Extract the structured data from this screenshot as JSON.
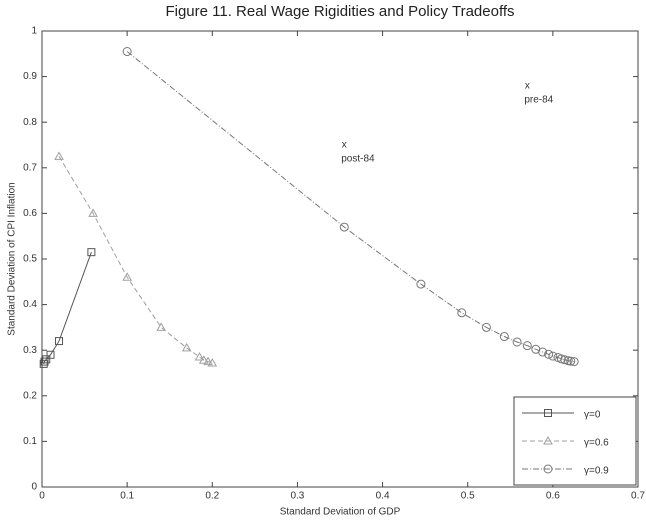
{
  "chart_data": {
    "type": "line",
    "title": "Figure 11. Real Wage Rigidities and Policy Tradeoffs",
    "x_label": "Standard Deviation of GDP",
    "y_label": "Standard Deviation of CPI Inflation",
    "xlim": [
      0,
      0.7
    ],
    "xticks": [
      0,
      0.1,
      0.2,
      0.3,
      0.4,
      0.5,
      0.6,
      0.7
    ],
    "ylim": [
      0,
      1
    ],
    "yticks": [
      0,
      0.1,
      0.2,
      0.3,
      0.4,
      0.5,
      0.6,
      0.7,
      0.8,
      0.9,
      1
    ],
    "legend": "lower right",
    "series": [
      {
        "name": "γ=0",
        "color": "#555555",
        "marker": "square",
        "dash": "solid",
        "x": [
          0.058,
          0.02,
          0.01,
          0.005,
          0.003,
          0.002
        ],
        "values": [
          0.515,
          0.32,
          0.29,
          0.28,
          0.275,
          0.27
        ]
      },
      {
        "name": "γ=0.6",
        "color": "#a0a0a0",
        "marker": "triangle",
        "dash": "dashed",
        "x": [
          0.02,
          0.06,
          0.1,
          0.14,
          0.17,
          0.185,
          0.19,
          0.195,
          0.2
        ],
        "values": [
          0.725,
          0.6,
          0.46,
          0.35,
          0.305,
          0.285,
          0.278,
          0.275,
          0.272
        ]
      },
      {
        "name": "γ=0.9",
        "color": "#777777",
        "marker": "circle",
        "dash": "dashdot",
        "x": [
          0.1,
          0.355,
          0.445,
          0.493,
          0.522,
          0.543,
          0.558,
          0.57,
          0.58,
          0.588,
          0.595,
          0.6,
          0.606,
          0.61,
          0.614,
          0.618,
          0.621,
          0.625
        ],
        "values": [
          0.955,
          0.57,
          0.445,
          0.382,
          0.35,
          0.33,
          0.318,
          0.31,
          0.302,
          0.296,
          0.291,
          0.287,
          0.284,
          0.281,
          0.279,
          0.277,
          0.276,
          0.275
        ]
      }
    ],
    "annotations": [
      {
        "marker": "x",
        "label": "pre-84",
        "x": 0.57,
        "y": 0.88
      },
      {
        "marker": "x",
        "label": "post-84",
        "x": 0.355,
        "y": 0.75
      }
    ]
  }
}
